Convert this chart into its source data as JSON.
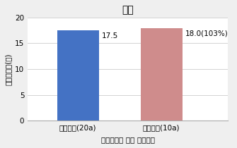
{
  "title": "적과",
  "categories": [
    "고설베드(20a)",
    "행잌베드(10a)"
  ],
  "values": [
    17.5,
    18.0
  ],
  "bar_labels": [
    "17.5",
    "18.0(103%)"
  ],
  "bar_colors": [
    "#4472C4",
    "#CF8C8C"
  ],
  "ylabel": "소요노동력(인)",
  "xlabel": "재배방법별 동일 재식주수",
  "ylim": [
    0,
    20
  ],
  "yticks": [
    0,
    5,
    10,
    15,
    20
  ],
  "background_color": "#EFEFEF",
  "plot_bg_color": "#FFFFFF",
  "title_fontsize": 10,
  "label_fontsize": 7.5,
  "tick_fontsize": 7.5,
  "bar_label_fontsize": 7.5,
  "xlabel_fontweight": "bold"
}
